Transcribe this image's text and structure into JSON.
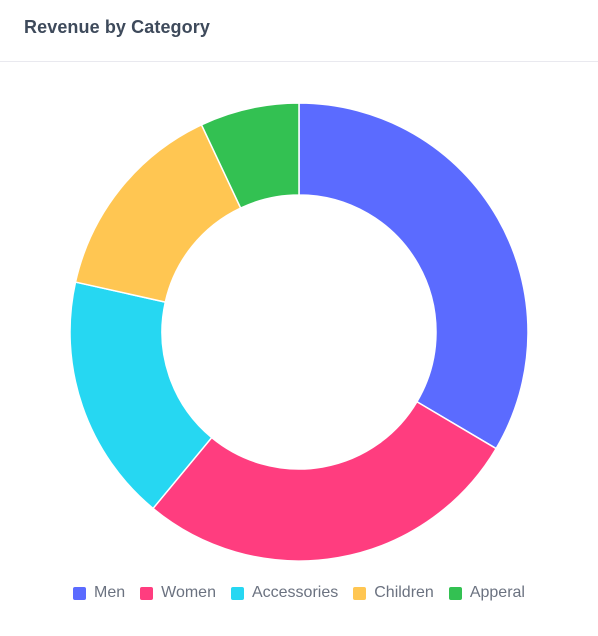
{
  "card": {
    "title": "Revenue by Category"
  },
  "chart_data": {
    "type": "pie",
    "variant": "donut",
    "title": "Revenue by Category",
    "categories": [
      "Men",
      "Women",
      "Accessories",
      "Children",
      "Apperal"
    ],
    "values": [
      33.5,
      27.5,
      17.5,
      14.5,
      7.0
    ],
    "colors": [
      "#5b6bff",
      "#ff3d7f",
      "#26d7f2",
      "#ffc652",
      "#33c152"
    ],
    "legend_position": "bottom-center",
    "grid": false
  },
  "legend": {
    "items": [
      {
        "label": "Men",
        "color": "#5b6bff"
      },
      {
        "label": "Women",
        "color": "#ff3d7f"
      },
      {
        "label": "Accessories",
        "color": "#26d7f2"
      },
      {
        "label": "Children",
        "color": "#ffc652"
      },
      {
        "label": "Apperal",
        "color": "#33c152"
      }
    ]
  }
}
